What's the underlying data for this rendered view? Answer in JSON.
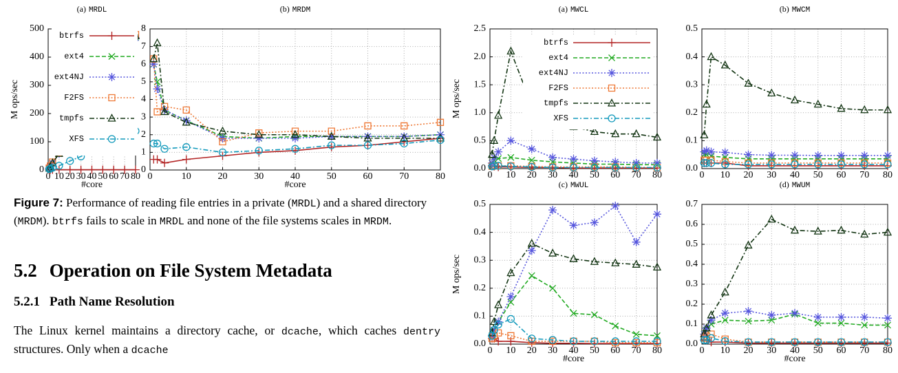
{
  "charts": [
    {
      "type": "line",
      "label": "(a)",
      "name": "MRDL",
      "xlabel": "#core",
      "ylabel": "M ops/sec",
      "legend": true,
      "grid": true,
      "x": [
        1,
        2,
        4,
        10,
        20,
        30,
        40,
        50,
        60,
        70,
        80
      ],
      "xlim": [
        0,
        80
      ],
      "xticks": [
        0,
        10,
        20,
        30,
        40,
        50,
        60,
        70,
        80
      ],
      "ylim": [
        0,
        500
      ],
      "yticks": [
        0,
        100,
        200,
        300,
        400,
        500
      ],
      "series": [
        {
          "name": "btrfs",
          "color": "#b22222",
          "marker": "plus",
          "dash": "solid",
          "values": [
            1,
            1,
            1,
            1,
            1,
            1,
            1,
            1,
            1,
            1,
            1
          ]
        },
        {
          "name": "ext4",
          "color": "#22aa22",
          "marker": "x",
          "dash": "dashed",
          "values": [
            6,
            12,
            24,
            58,
            118,
            178,
            238,
            295,
            352,
            415,
            470
          ]
        },
        {
          "name": "ext4NJ",
          "color": "#5555dd",
          "marker": "star",
          "dash": "dotted",
          "values": [
            6,
            12,
            24,
            58,
            117,
            177,
            236,
            294,
            350,
            412,
            468
          ]
        },
        {
          "name": "F2FS",
          "color": "#ee7733",
          "marker": "square",
          "dash": "dotted",
          "values": [
            7,
            14,
            28,
            62,
            122,
            183,
            245,
            305,
            368,
            425,
            480
          ]
        },
        {
          "name": "tmpfs",
          "color": "#113311",
          "marker": "triangle",
          "dash": "dashdot",
          "values": [
            6,
            12,
            25,
            58,
            119,
            180,
            240,
            298,
            355,
            418,
            475
          ]
        },
        {
          "name": "XFS",
          "color": "#1199bb",
          "marker": "circle",
          "dash": "dashdot",
          "values": [
            3,
            5,
            8,
            15,
            32,
            48,
            68,
            85,
            105,
            122,
            138
          ]
        }
      ]
    },
    {
      "type": "line",
      "label": "(b)",
      "name": "MRDM",
      "xlabel": "#core",
      "grid": true,
      "x": [
        1,
        2,
        4,
        10,
        20,
        30,
        40,
        50,
        60,
        70,
        80
      ],
      "xlim": [
        0,
        80
      ],
      "xticks": [
        0,
        10,
        20,
        30,
        40,
        50,
        60,
        70,
        80
      ],
      "ylim": [
        0,
        8
      ],
      "yticks": [
        0,
        1,
        2,
        3,
        4,
        5,
        6,
        7,
        8
      ],
      "series": [
        {
          "name": "btrfs",
          "color": "#b22222",
          "marker": "plus",
          "dash": "solid",
          "values": [
            0.6,
            0.6,
            0.4,
            0.6,
            0.8,
            1.0,
            1.1,
            1.3,
            1.4,
            1.6,
            1.8
          ]
        },
        {
          "name": "ext4",
          "color": "#22aa22",
          "marker": "x",
          "dash": "dashed",
          "values": [
            6.0,
            5.0,
            3.4,
            2.8,
            1.9,
            1.8,
            1.9,
            1.9,
            1.9,
            1.9,
            2.0
          ]
        },
        {
          "name": "ext4NJ",
          "color": "#5555dd",
          "marker": "star",
          "dash": "dotted",
          "values": [
            6.0,
            4.6,
            3.4,
            2.8,
            1.8,
            1.8,
            1.8,
            1.9,
            1.9,
            1.9,
            2.0
          ]
        },
        {
          "name": "F2FS",
          "color": "#ee7733",
          "marker": "square",
          "dash": "dotted",
          "values": [
            6.3,
            3.3,
            3.6,
            3.4,
            1.6,
            2.1,
            2.2,
            2.2,
            2.5,
            2.5,
            2.7
          ]
        },
        {
          "name": "tmpfs",
          "color": "#113311",
          "marker": "triangle",
          "dash": "dashdot",
          "values": [
            6.3,
            7.2,
            3.3,
            2.7,
            2.2,
            2.0,
            2.0,
            1.9,
            1.8,
            1.8,
            1.8
          ]
        },
        {
          "name": "XFS",
          "color": "#1199bb",
          "marker": "circle",
          "dash": "dashdot",
          "values": [
            1.5,
            1.5,
            1.2,
            1.3,
            1.0,
            1.1,
            1.2,
            1.4,
            1.4,
            1.5,
            1.7
          ]
        }
      ]
    },
    {
      "type": "line",
      "label": "(a)",
      "name": "MWCL",
      "ylabel": "M ops/sec",
      "legend": true,
      "grid": true,
      "x": [
        1,
        2,
        4,
        10,
        20,
        30,
        40,
        50,
        60,
        70,
        80
      ],
      "xlim": [
        0,
        80
      ],
      "xticks": [
        0,
        10,
        20,
        30,
        40,
        50,
        60,
        70,
        80
      ],
      "ylim": [
        0,
        2.5
      ],
      "yticks": [
        {
          "value": 0,
          "label": "0.0"
        },
        0.5,
        {
          "value": 1,
          "label": "1.0"
        },
        1.5,
        {
          "value": 2,
          "label": "2.0"
        },
        2.5
      ],
      "series": [
        {
          "name": "btrfs",
          "color": "#b22222",
          "marker": "plus",
          "dash": "solid",
          "values": [
            0.05,
            0.04,
            0.03,
            0.03,
            0.02,
            0.02,
            0.01,
            0.01,
            0.01,
            0.01,
            0.01
          ]
        },
        {
          "name": "ext4",
          "color": "#22aa22",
          "marker": "x",
          "dash": "dashed",
          "values": [
            0.1,
            0.15,
            0.18,
            0.2,
            0.15,
            0.12,
            0.1,
            0.08,
            0.08,
            0.07,
            0.07
          ]
        },
        {
          "name": "ext4NJ",
          "color": "#5555dd",
          "marker": "star",
          "dash": "dotted",
          "values": [
            0.1,
            0.2,
            0.3,
            0.5,
            0.35,
            0.2,
            0.17,
            0.14,
            0.12,
            0.1,
            0.1
          ]
        },
        {
          "name": "F2FS",
          "color": "#ee7733",
          "marker": "square",
          "dash": "dotted",
          "values": [
            0.04,
            0.05,
            0.05,
            0.05,
            0.04,
            0.03,
            0.03,
            0.03,
            0.03,
            0.02,
            0.02
          ]
        },
        {
          "name": "tmpfs",
          "color": "#113311",
          "marker": "triangle",
          "dash": "dashdot",
          "values": [
            0.25,
            0.5,
            0.95,
            2.1,
            1.13,
            0.9,
            0.75,
            0.66,
            0.62,
            0.62,
            0.56
          ]
        },
        {
          "name": "XFS",
          "color": "#1199bb",
          "marker": "circle",
          "dash": "dashdot",
          "values": [
            0.04,
            0.05,
            0.05,
            0.04,
            0.03,
            0.02,
            0.02,
            0.02,
            0.02,
            0.02,
            0.02
          ]
        }
      ]
    },
    {
      "type": "line",
      "label": "(b)",
      "name": "MWCM",
      "grid": true,
      "x": [
        1,
        2,
        4,
        10,
        20,
        30,
        40,
        50,
        60,
        70,
        80
      ],
      "xlim": [
        0,
        80
      ],
      "xticks": [
        0,
        10,
        20,
        30,
        40,
        50,
        60,
        70,
        80
      ],
      "ylim": [
        0,
        0.5
      ],
      "yticks": [
        {
          "value": 0,
          "label": "0.0"
        },
        0.1,
        0.2,
        0.3,
        0.4,
        0.5
      ],
      "series": [
        {
          "name": "btrfs",
          "color": "#b22222",
          "marker": "plus",
          "dash": "solid",
          "values": [
            0.02,
            0.02,
            0.02,
            0.02,
            0.01,
            0.01,
            0.01,
            0.01,
            0.01,
            0.01,
            0.01
          ]
        },
        {
          "name": "ext4",
          "color": "#22aa22",
          "marker": "x",
          "dash": "dashed",
          "values": [
            0.05,
            0.05,
            0.045,
            0.04,
            0.035,
            0.035,
            0.035,
            0.035,
            0.035,
            0.035,
            0.035
          ]
        },
        {
          "name": "ext4NJ",
          "color": "#5555dd",
          "marker": "star",
          "dash": "dotted",
          "values": [
            0.06,
            0.065,
            0.06,
            0.058,
            0.05,
            0.048,
            0.048,
            0.047,
            0.047,
            0.047,
            0.047
          ]
        },
        {
          "name": "F2FS",
          "color": "#ee7733",
          "marker": "square",
          "dash": "dotted",
          "values": [
            0.03,
            0.03,
            0.03,
            0.025,
            0.02,
            0.02,
            0.02,
            0.02,
            0.02,
            0.02,
            0.02
          ]
        },
        {
          "name": "tmpfs",
          "color": "#113311",
          "marker": "triangle",
          "dash": "dashdot",
          "values": [
            0.12,
            0.23,
            0.4,
            0.37,
            0.305,
            0.27,
            0.245,
            0.23,
            0.215,
            0.21,
            0.21
          ]
        },
        {
          "name": "XFS",
          "color": "#1199bb",
          "marker": "circle",
          "dash": "dashdot",
          "values": [
            0.02,
            0.02,
            0.02,
            0.015,
            0.015,
            0.015,
            0.015,
            0.015,
            0.015,
            0.015,
            0.015
          ]
        }
      ]
    },
    {
      "type": "line",
      "label": "(c)",
      "name": "MWUL",
      "xlabel": "#core",
      "ylabel": "M ops/sec",
      "grid": true,
      "x": [
        1,
        2,
        4,
        10,
        20,
        30,
        40,
        50,
        60,
        70,
        80
      ],
      "xlim": [
        0,
        80
      ],
      "xticks": [
        0,
        10,
        20,
        30,
        40,
        50,
        60,
        70,
        80
      ],
      "ylim": [
        0,
        0.5
      ],
      "yticks": [
        {
          "value": 0,
          "label": "0.0"
        },
        0.1,
        0.2,
        0.3,
        0.4,
        0.5
      ],
      "series": [
        {
          "name": "btrfs",
          "color": "#b22222",
          "marker": "plus",
          "dash": "solid",
          "values": [
            0.02,
            0.02,
            0.01,
            0.01,
            0.005,
            0.003,
            0.003,
            0.002,
            0.002,
            0.002,
            0.002
          ]
        },
        {
          "name": "ext4",
          "color": "#22aa22",
          "marker": "x",
          "dash": "dashed",
          "values": [
            0.03,
            0.05,
            0.08,
            0.15,
            0.245,
            0.2,
            0.11,
            0.105,
            0.065,
            0.035,
            0.03
          ]
        },
        {
          "name": "ext4NJ",
          "color": "#5555dd",
          "marker": "star",
          "dash": "dotted",
          "values": [
            0.03,
            0.05,
            0.08,
            0.17,
            0.335,
            0.48,
            0.425,
            0.435,
            0.495,
            0.365,
            0.465
          ]
        },
        {
          "name": "F2FS",
          "color": "#ee7733",
          "marker": "square",
          "dash": "dotted",
          "values": [
            0.02,
            0.03,
            0.04,
            0.03,
            0.01,
            0.01,
            0.01,
            0.01,
            0.005,
            0.005,
            0.005
          ]
        },
        {
          "name": "tmpfs",
          "color": "#113311",
          "marker": "triangle",
          "dash": "dashdot",
          "values": [
            0.04,
            0.08,
            0.14,
            0.255,
            0.36,
            0.325,
            0.305,
            0.295,
            0.29,
            0.285,
            0.275
          ]
        },
        {
          "name": "XFS",
          "color": "#1199bb",
          "marker": "circle",
          "dash": "dashdot",
          "values": [
            0.03,
            0.05,
            0.07,
            0.09,
            0.02,
            0.015,
            0.01,
            0.01,
            0.01,
            0.01,
            0.01
          ]
        }
      ]
    },
    {
      "type": "line",
      "label": "(d)",
      "name": "MWUM",
      "xlabel": "#core",
      "grid": true,
      "x": [
        1,
        2,
        4,
        10,
        20,
        30,
        40,
        50,
        60,
        70,
        80
      ],
      "xlim": [
        0,
        80
      ],
      "xticks": [
        0,
        10,
        20,
        30,
        40,
        50,
        60,
        70,
        80
      ],
      "ylim": [
        0,
        0.7
      ],
      "yticks": [
        {
          "value": 0,
          "label": "0.0"
        },
        0.1,
        0.2,
        0.3,
        0.4,
        0.5,
        0.6,
        0.7
      ],
      "series": [
        {
          "name": "btrfs",
          "color": "#b22222",
          "marker": "plus",
          "dash": "solid",
          "values": [
            0.02,
            0.02,
            0.01,
            0.01,
            0.005,
            0.005,
            0.005,
            0.005,
            0.005,
            0.005,
            0.005
          ]
        },
        {
          "name": "ext4",
          "color": "#22aa22",
          "marker": "x",
          "dash": "dashed",
          "values": [
            0.05,
            0.07,
            0.1,
            0.12,
            0.115,
            0.12,
            0.15,
            0.105,
            0.105,
            0.095,
            0.095
          ]
        },
        {
          "name": "ext4NJ",
          "color": "#5555dd",
          "marker": "star",
          "dash": "dotted",
          "values": [
            0.05,
            0.08,
            0.12,
            0.155,
            0.165,
            0.145,
            0.155,
            0.135,
            0.135,
            0.135,
            0.13
          ]
        },
        {
          "name": "F2FS",
          "color": "#ee7733",
          "marker": "square",
          "dash": "dotted",
          "values": [
            0.03,
            0.04,
            0.05,
            0.025,
            0.01,
            0.01,
            0.01,
            0.01,
            0.01,
            0.01,
            0.01
          ]
        },
        {
          "name": "tmpfs",
          "color": "#113311",
          "marker": "triangle",
          "dash": "dashdot",
          "values": [
            0.05,
            0.08,
            0.145,
            0.26,
            0.495,
            0.625,
            0.57,
            0.565,
            0.57,
            0.55,
            0.56
          ]
        },
        {
          "name": "XFS",
          "color": "#1199bb",
          "marker": "circle",
          "dash": "dashdot",
          "values": [
            0.02,
            0.02,
            0.03,
            0.015,
            0.01,
            0.01,
            0.01,
            0.01,
            0.01,
            0.01,
            0.01
          ]
        }
      ]
    }
  ],
  "caption": {
    "label": "Figure 7:",
    "parts": [
      {
        "text": " Performance of reading file entries in a private ("
      },
      {
        "text": "MRDL",
        "code": true
      },
      {
        "text": ") and a shared directory ("
      },
      {
        "text": "MRDM",
        "code": true
      },
      {
        "text": "). "
      },
      {
        "text": "btrfs",
        "code": true
      },
      {
        "text": " fails to scale in "
      },
      {
        "text": "MRDL",
        "code": true
      },
      {
        "text": " and none of the file systems scales in "
      },
      {
        "text": "MRDM",
        "code": true
      },
      {
        "text": "."
      }
    ]
  },
  "section": {
    "number": "5.2",
    "title": "Operation on File System Metadata"
  },
  "subsection": {
    "number": "5.2.1",
    "title": "Path Name Resolution"
  },
  "paragraph": [
    {
      "text": "The Linux kernel maintains a directory cache, or "
    },
    {
      "text": "dcache",
      "code": true
    },
    {
      "text": ", which caches "
    },
    {
      "text": "dentry",
      "code": true
    },
    {
      "text": " structures. Only when a "
    },
    {
      "text": "dcache",
      "code": true
    }
  ]
}
